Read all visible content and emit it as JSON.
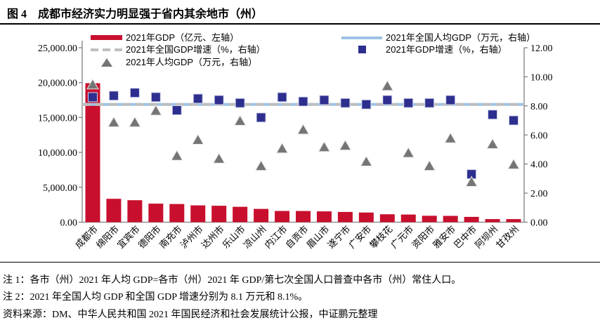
{
  "title": "图 4　成都市经济实力明显强于省内其余地市（州）",
  "notes": {
    "note1": "注 1：各市（州）2021 年人均 GDP=各市（州）2021 年 GDP/第七次全国人口普查中各市（州）常住人口。",
    "note2": "注 2：2021 年全国人均 GDP 和全国 GDP 增速分别为 8.1 万元和 8.1%。",
    "source": "资料来源：DM、中华人民共和国 2021 年国民经济和社会发展统计公报，中证鹏元整理"
  },
  "chart_data": {
    "type": "combo",
    "categories": [
      "成都市",
      "绵阳市",
      "宜宾市",
      "德阳市",
      "南充市",
      "泸州市",
      "达州市",
      "乐山市",
      "凉山州",
      "内江市",
      "自贡市",
      "眉山市",
      "遂宁市",
      "广安市",
      "攀枝花",
      "广元市",
      "资阳市",
      "雅安市",
      "巴中市",
      "阿坝州",
      "甘孜州"
    ],
    "series": [
      {
        "name": "2021年GDP（亿元、左轴）",
        "type": "bar",
        "axis": "left",
        "values": [
          19917,
          3350,
          3148,
          2657,
          2602,
          2406,
          2352,
          2205,
          1901,
          1606,
          1601,
          1548,
          1466,
          1380,
          1134,
          1095,
          918,
          903,
          760,
          442,
          441
        ]
      },
      {
        "name": "2021年GDP增速（%，右轴）",
        "type": "square",
        "axis": "right",
        "values": [
          8.6,
          8.7,
          8.9,
          8.6,
          7.7,
          8.5,
          8.4,
          8.2,
          7.2,
          8.6,
          8.3,
          8.4,
          8.2,
          8.1,
          8.4,
          8.2,
          8.2,
          8.4,
          3.3,
          7.4,
          7.0
        ]
      },
      {
        "name": "2021年人均GDP（万元，右轴）",
        "type": "triangle",
        "axis": "right",
        "values": [
          9.5,
          6.9,
          6.9,
          7.7,
          4.6,
          5.7,
          4.4,
          7.0,
          3.9,
          5.1,
          6.4,
          5.2,
          5.3,
          4.2,
          9.4,
          4.8,
          3.9,
          5.8,
          2.8,
          5.4,
          4.0
        ]
      },
      {
        "name": "2021年全国人均GDP（万元，右轴）",
        "type": "hline",
        "axis": "right",
        "value": 8.1
      },
      {
        "name": "2021年全国GDP增速（%，右轴）",
        "type": "hline-dashed",
        "axis": "right",
        "value": 8.1
      }
    ],
    "left_axis": {
      "min": 0,
      "max": 25000,
      "ticks": [
        "25,000.00",
        "20,000.00",
        "15,000.00",
        "10,000.00",
        "5,000.00",
        "0.00"
      ]
    },
    "right_axis": {
      "min": 0,
      "max": 12,
      "ticks": [
        "12.00",
        "10.00",
        "8.00",
        "6.00",
        "4.00",
        "2.00",
        "0.00"
      ]
    },
    "legend_left_order": [
      0,
      4,
      2
    ],
    "legend_right_order": [
      3,
      1
    ],
    "colors": {
      "gdp_bar": "#C8102E",
      "gdp_growth": "#2D2E8E",
      "per_capita": "#757575",
      "national_per_capita_line": "#9DC3E6",
      "national_growth_line": "#BFBFBF"
    }
  }
}
